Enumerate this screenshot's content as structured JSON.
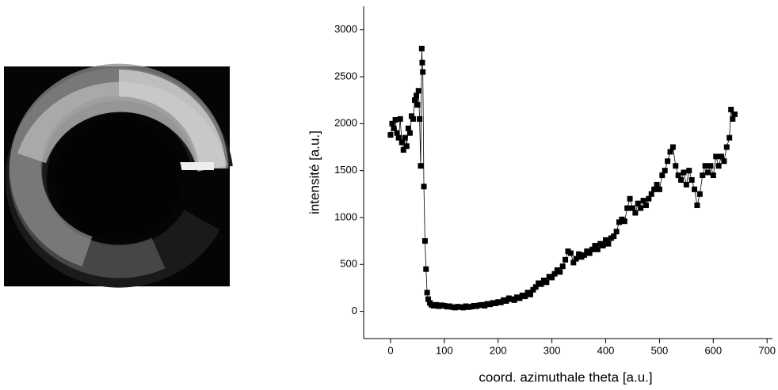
{
  "chart_data": {
    "type": "scatter",
    "x_label": "coord. azimuthale theta [a.u.]",
    "y_label": "intensité [a.u.]",
    "xlim": [
      -50,
      710
    ],
    "xticks": [
      0,
      100,
      200,
      300,
      400,
      500,
      600,
      700
    ],
    "ylim": [
      -290,
      3250
    ],
    "yticks": [
      0,
      500,
      1000,
      1500,
      2000,
      2500,
      3000
    ],
    "series": [
      {
        "color": "#000000",
        "x": [
          0,
          3,
          6,
          9,
          12,
          15,
          18,
          21,
          24,
          27,
          30,
          33,
          36,
          39,
          42,
          45,
          48,
          50,
          52,
          54,
          56,
          58,
          59,
          60,
          62,
          64,
          66,
          68,
          70,
          73,
          76,
          80,
          85,
          90,
          95,
          100,
          105,
          110,
          115,
          120,
          125,
          130,
          135,
          140,
          145,
          150,
          155,
          160,
          165,
          170,
          175,
          180,
          185,
          190,
          195,
          200,
          205,
          210,
          215,
          220,
          225,
          230,
          235,
          240,
          245,
          250,
          255,
          260,
          265,
          270,
          275,
          280,
          285,
          290,
          295,
          300,
          305,
          310,
          315,
          320,
          325,
          330,
          335,
          340,
          345,
          350,
          355,
          360,
          365,
          370,
          375,
          380,
          385,
          390,
          395,
          400,
          405,
          410,
          415,
          420,
          425,
          430,
          435,
          440,
          445,
          450,
          455,
          460,
          465,
          470,
          475,
          480,
          485,
          490,
          495,
          500,
          505,
          510,
          515,
          520,
          525,
          530,
          535,
          540,
          545,
          550,
          555,
          560,
          565,
          570,
          575,
          580,
          585,
          590,
          595,
          600,
          605,
          610,
          615,
          620,
          625,
          630,
          633,
          636,
          640
        ],
        "values": [
          1880,
          2000,
          1950,
          2040,
          1900,
          1850,
          2050,
          1800,
          1720,
          1850,
          1760,
          1950,
          1900,
          2080,
          2050,
          2250,
          2300,
          2200,
          2350,
          2050,
          1550,
          2800,
          2650,
          2550,
          1330,
          750,
          450,
          200,
          130,
          90,
          70,
          60,
          70,
          55,
          65,
          60,
          50,
          55,
          45,
          40,
          50,
          45,
          40,
          55,
          45,
          50,
          60,
          55,
          65,
          70,
          60,
          80,
          75,
          90,
          85,
          100,
          95,
          120,
          110,
          140,
          130,
          120,
          150,
          140,
          170,
          160,
          200,
          180,
          230,
          260,
          300,
          290,
          330,
          310,
          370,
          360,
          400,
          440,
          420,
          480,
          550,
          640,
          620,
          520,
          560,
          610,
          580,
          600,
          640,
          620,
          660,
          700,
          660,
          720,
          700,
          760,
          720,
          780,
          800,
          850,
          950,
          980,
          960,
          1100,
          1200,
          1100,
          1050,
          1150,
          1100,
          1180,
          1130,
          1200,
          1250,
          1300,
          1350,
          1300,
          1450,
          1500,
          1600,
          1700,
          1750,
          1550,
          1450,
          1400,
          1480,
          1350,
          1500,
          1400,
          1300,
          1130,
          1250,
          1450,
          1550,
          1480,
          1550,
          1450,
          1650,
          1550,
          1650,
          1600,
          1750,
          1850,
          2150,
          2050,
          2100
        ]
      }
    ]
  }
}
